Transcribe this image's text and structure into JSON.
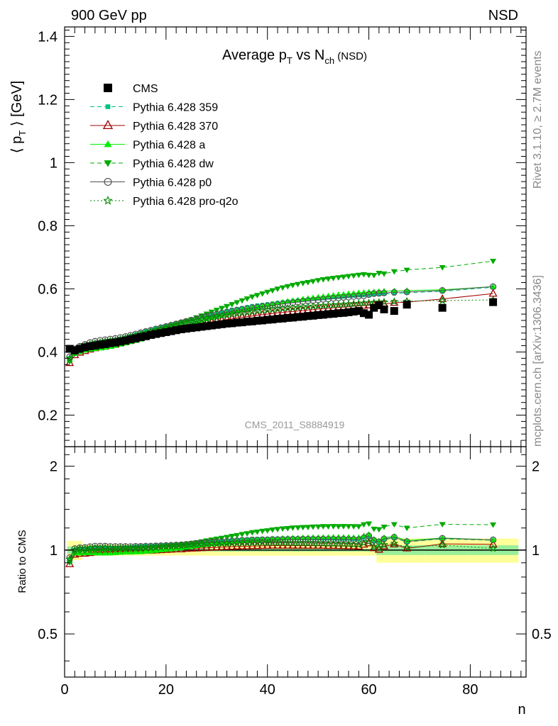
{
  "header": {
    "left": "900 GeV pp",
    "right": "NSD"
  },
  "side": {
    "top": "Rivet 3.1.10, ≥ 2.7M events",
    "bottom": "mcplots.cern.ch [arXiv:1306.3436]"
  },
  "analysis_label": "CMS_2011_S8884919",
  "colors": {
    "cms": "#000000",
    "p359": "#00c080",
    "p370": "#a00000",
    "pa": "#00ee00",
    "pdw": "#00aa00",
    "pp0": "#505050",
    "pq2o": "#008800",
    "band_yellow": "#ffff99",
    "band_green": "#99ee99"
  },
  "chart_data": [
    {
      "type": "scatter",
      "title": "Average p_T vs N_ch (NSD)",
      "title_parts": {
        "pre": "Average p",
        "sub1": "T",
        "mid": " vs N",
        "sub2": "ch",
        "post": " (NSD)"
      },
      "ylabel": "⟨ p_T ⟩ [GeV]",
      "ylabel_parts": {
        "pre": "⟨ p",
        "sub": "T",
        "post": " ⟩ [GeV]"
      },
      "xlabel": "n",
      "xlim": [
        0,
        91
      ],
      "ylim": [
        0.1,
        1.43
      ],
      "yticks": [
        "0.2",
        "0.4",
        "0.6",
        "0.8",
        "1",
        "1.2",
        "1.4"
      ],
      "xticks": [
        "0",
        "20",
        "40",
        "60",
        "80"
      ],
      "legend_placement": "top-left",
      "series": [
        {
          "key": "cms",
          "name": "CMS",
          "marker": "square",
          "line": "none",
          "x": [
            1,
            2,
            3,
            4,
            5,
            6,
            7,
            8,
            9,
            10,
            11,
            12,
            13,
            14,
            15,
            16,
            17,
            18,
            19,
            20,
            21,
            22,
            23,
            24,
            25,
            26,
            27,
            28,
            29,
            30,
            31,
            32,
            33,
            34,
            35,
            36,
            37,
            38,
            39,
            40,
            41,
            42,
            43,
            44,
            45,
            46,
            47,
            48,
            49,
            50,
            51,
            52,
            53,
            54,
            55,
            56,
            57,
            58,
            59,
            60,
            61,
            62,
            63,
            65,
            67.5,
            74.5,
            84.5
          ],
          "y": [
            0.41,
            0.405,
            0.41,
            0.415,
            0.418,
            0.42,
            0.423,
            0.425,
            0.428,
            0.43,
            0.433,
            0.436,
            0.44,
            0.443,
            0.447,
            0.45,
            0.454,
            0.457,
            0.46,
            0.463,
            0.466,
            0.469,
            0.472,
            0.474,
            0.476,
            0.478,
            0.48,
            0.482,
            0.484,
            0.486,
            0.488,
            0.49,
            0.491,
            0.493,
            0.494,
            0.496,
            0.497,
            0.499,
            0.5,
            0.502,
            0.503,
            0.505,
            0.506,
            0.508,
            0.509,
            0.511,
            0.512,
            0.514,
            0.515,
            0.517,
            0.518,
            0.52,
            0.521,
            0.523,
            0.524,
            0.526,
            0.528,
            0.53,
            0.523,
            0.518,
            0.54,
            0.548,
            0.535,
            0.53,
            0.55,
            0.54,
            0.558
          ]
        },
        {
          "key": "p359",
          "name": "Pythia 6.428 359",
          "marker": "square-small",
          "line": "dashed",
          "x": [
            1,
            2,
            3,
            4,
            5,
            6,
            7,
            8,
            9,
            10,
            11,
            12,
            13,
            14,
            15,
            16,
            17,
            18,
            19,
            20,
            21,
            22,
            23,
            24,
            25,
            26,
            27,
            28,
            29,
            30,
            31,
            32,
            33,
            34,
            35,
            36,
            37,
            38,
            39,
            40,
            41,
            42,
            43,
            44,
            45,
            46,
            47,
            48,
            49,
            50,
            51,
            52,
            53,
            54,
            55,
            56,
            57,
            58,
            59,
            60,
            61,
            62,
            63,
            65,
            67.5,
            74.5,
            84.5
          ],
          "y": [
            0.38,
            0.405,
            0.415,
            0.42,
            0.425,
            0.43,
            0.432,
            0.434,
            0.436,
            0.438,
            0.442,
            0.446,
            0.451,
            0.456,
            0.461,
            0.466,
            0.47,
            0.475,
            0.479,
            0.483,
            0.487,
            0.491,
            0.495,
            0.499,
            0.503,
            0.507,
            0.511,
            0.515,
            0.519,
            0.523,
            0.527,
            0.531,
            0.534,
            0.537,
            0.54,
            0.543,
            0.546,
            0.548,
            0.55,
            0.552,
            0.554,
            0.556,
            0.558,
            0.56,
            0.562,
            0.563,
            0.565,
            0.566,
            0.568,
            0.569,
            0.57,
            0.572,
            0.573,
            0.574,
            0.575,
            0.577,
            0.578,
            0.579,
            0.58,
            0.581,
            0.582,
            0.583,
            0.584,
            0.585,
            0.588,
            0.592,
            0.605
          ]
        },
        {
          "key": "p370",
          "name": "Pythia 6.428 370",
          "marker": "triangle-open",
          "line": "solid",
          "x": [
            1,
            2,
            3,
            4,
            5,
            6,
            7,
            8,
            9,
            10,
            11,
            12,
            13,
            14,
            15,
            16,
            17,
            18,
            19,
            20,
            21,
            22,
            23,
            24,
            25,
            26,
            27,
            28,
            29,
            30,
            31,
            32,
            33,
            34,
            35,
            36,
            37,
            38,
            39,
            40,
            41,
            42,
            43,
            44,
            45,
            46,
            47,
            48,
            49,
            50,
            51,
            52,
            53,
            54,
            55,
            56,
            57,
            58,
            59,
            60,
            61,
            62,
            63,
            65,
            67.5,
            74.5,
            84.5
          ],
          "y": [
            0.365,
            0.39,
            0.398,
            0.403,
            0.408,
            0.412,
            0.415,
            0.418,
            0.421,
            0.424,
            0.428,
            0.432,
            0.436,
            0.44,
            0.444,
            0.448,
            0.452,
            0.456,
            0.46,
            0.464,
            0.468,
            0.472,
            0.475,
            0.479,
            0.482,
            0.485,
            0.488,
            0.491,
            0.494,
            0.497,
            0.5,
            0.503,
            0.505,
            0.508,
            0.51,
            0.512,
            0.514,
            0.516,
            0.518,
            0.52,
            0.522,
            0.524,
            0.525,
            0.527,
            0.528,
            0.53,
            0.531,
            0.533,
            0.534,
            0.536,
            0.537,
            0.538,
            0.54,
            0.541,
            0.542,
            0.543,
            0.545,
            0.546,
            0.547,
            0.548,
            0.549,
            0.55,
            0.552,
            0.556,
            0.558,
            0.568,
            0.585
          ]
        },
        {
          "key": "pa",
          "name": "Pythia 6.428 a",
          "marker": "triangle",
          "line": "solid",
          "x": [
            1,
            2,
            3,
            4,
            5,
            6,
            7,
            8,
            9,
            10,
            11,
            12,
            13,
            14,
            15,
            16,
            17,
            18,
            19,
            20,
            21,
            22,
            23,
            24,
            25,
            26,
            27,
            28,
            29,
            30,
            31,
            32,
            33,
            34,
            35,
            36,
            37,
            38,
            39,
            40,
            41,
            42,
            43,
            44,
            45,
            46,
            47,
            48,
            49,
            50,
            51,
            52,
            53,
            54,
            55,
            56,
            57,
            58,
            59,
            60,
            61,
            62,
            63,
            65,
            67.5,
            74.5,
            84.5
          ],
          "y": [
            0.375,
            0.395,
            0.4,
            0.405,
            0.408,
            0.41,
            0.412,
            0.414,
            0.417,
            0.42,
            0.424,
            0.428,
            0.432,
            0.436,
            0.44,
            0.445,
            0.45,
            0.455,
            0.46,
            0.465,
            0.47,
            0.475,
            0.48,
            0.485,
            0.49,
            0.495,
            0.5,
            0.505,
            0.51,
            0.514,
            0.518,
            0.522,
            0.526,
            0.53,
            0.534,
            0.537,
            0.54,
            0.543,
            0.546,
            0.549,
            0.552,
            0.555,
            0.558,
            0.561,
            0.563,
            0.565,
            0.568,
            0.57,
            0.572,
            0.574,
            0.576,
            0.578,
            0.58,
            0.582,
            0.583,
            0.585,
            0.586,
            0.588,
            0.589,
            0.59,
            0.591,
            0.592,
            0.593,
            0.594,
            0.595,
            0.597,
            0.607
          ]
        },
        {
          "key": "pdw",
          "name": "Pythia 6.428 dw",
          "marker": "triangle-down",
          "line": "dashed",
          "x": [
            1,
            2,
            3,
            4,
            5,
            6,
            7,
            8,
            9,
            10,
            11,
            12,
            13,
            14,
            15,
            16,
            17,
            18,
            19,
            20,
            21,
            22,
            23,
            24,
            25,
            26,
            27,
            28,
            29,
            30,
            31,
            32,
            33,
            34,
            35,
            36,
            37,
            38,
            39,
            40,
            41,
            42,
            43,
            44,
            45,
            46,
            47,
            48,
            49,
            50,
            51,
            52,
            53,
            54,
            55,
            56,
            57,
            58,
            59,
            60,
            61,
            62,
            63,
            65,
            67.5,
            74.5,
            84.5
          ],
          "y": [
            0.37,
            0.395,
            0.405,
            0.41,
            0.415,
            0.418,
            0.421,
            0.424,
            0.427,
            0.43,
            0.434,
            0.438,
            0.443,
            0.448,
            0.453,
            0.458,
            0.463,
            0.468,
            0.473,
            0.478,
            0.483,
            0.488,
            0.493,
            0.498,
            0.503,
            0.509,
            0.515,
            0.521,
            0.527,
            0.533,
            0.539,
            0.545,
            0.551,
            0.557,
            0.563,
            0.569,
            0.575,
            0.58,
            0.585,
            0.59,
            0.595,
            0.6,
            0.604,
            0.608,
            0.612,
            0.615,
            0.618,
            0.621,
            0.624,
            0.627,
            0.63,
            0.632,
            0.634,
            0.636,
            0.638,
            0.64,
            0.642,
            0.644,
            0.646,
            0.644,
            0.643,
            0.65,
            0.648,
            0.655,
            0.66,
            0.668,
            0.688
          ]
        },
        {
          "key": "pp0",
          "name": "Pythia 6.428 p0",
          "marker": "circle-open",
          "line": "solid",
          "x": [
            1,
            2,
            3,
            4,
            5,
            6,
            7,
            8,
            9,
            10,
            11,
            12,
            13,
            14,
            15,
            16,
            17,
            18,
            19,
            20,
            21,
            22,
            23,
            24,
            25,
            26,
            27,
            28,
            29,
            30,
            31,
            32,
            33,
            34,
            35,
            36,
            37,
            38,
            39,
            40,
            41,
            42,
            43,
            44,
            45,
            46,
            47,
            48,
            49,
            50,
            51,
            52,
            53,
            54,
            55,
            56,
            57,
            58,
            59,
            60,
            61,
            62,
            63,
            65,
            67.5,
            74.5,
            84.5
          ],
          "y": [
            0.385,
            0.41,
            0.418,
            0.424,
            0.43,
            0.434,
            0.437,
            0.439,
            0.441,
            0.443,
            0.446,
            0.449,
            0.453,
            0.457,
            0.461,
            0.465,
            0.469,
            0.473,
            0.477,
            0.481,
            0.485,
            0.489,
            0.493,
            0.497,
            0.501,
            0.505,
            0.509,
            0.513,
            0.517,
            0.52,
            0.523,
            0.526,
            0.529,
            0.532,
            0.535,
            0.537,
            0.54,
            0.542,
            0.544,
            0.546,
            0.548,
            0.55,
            0.552,
            0.554,
            0.556,
            0.558,
            0.56,
            0.562,
            0.563,
            0.565,
            0.567,
            0.568,
            0.57,
            0.571,
            0.573,
            0.574,
            0.576,
            0.577,
            0.578,
            0.582,
            0.585,
            0.586,
            0.587,
            0.589,
            0.59,
            0.595,
            0.607
          ]
        },
        {
          "key": "pq2o",
          "name": "Pythia 6.428 pro-q2o",
          "marker": "star",
          "line": "dotted",
          "x": [
            1,
            2,
            3,
            4,
            5,
            6,
            7,
            8,
            9,
            10,
            11,
            12,
            13,
            14,
            15,
            16,
            17,
            18,
            19,
            20,
            21,
            22,
            23,
            24,
            25,
            26,
            27,
            28,
            29,
            30,
            31,
            32,
            33,
            34,
            35,
            36,
            37,
            38,
            39,
            40,
            41,
            42,
            43,
            44,
            45,
            46,
            47,
            48,
            49,
            50,
            51,
            52,
            53,
            54,
            55,
            56,
            57,
            58,
            59,
            60,
            61,
            62,
            63,
            65,
            67.5,
            74.5,
            84.5
          ],
          "y": [
            0.38,
            0.405,
            0.415,
            0.42,
            0.425,
            0.428,
            0.431,
            0.434,
            0.436,
            0.438,
            0.441,
            0.444,
            0.448,
            0.452,
            0.456,
            0.46,
            0.464,
            0.468,
            0.472,
            0.476,
            0.48,
            0.484,
            0.488,
            0.492,
            0.496,
            0.5,
            0.503,
            0.506,
            0.509,
            0.512,
            0.515,
            0.517,
            0.52,
            0.522,
            0.524,
            0.526,
            0.528,
            0.53,
            0.532,
            0.533,
            0.535,
            0.536,
            0.538,
            0.539,
            0.54,
            0.541,
            0.543,
            0.544,
            0.545,
            0.546,
            0.547,
            0.548,
            0.549,
            0.55,
            0.551,
            0.552,
            0.553,
            0.554,
            0.555,
            0.556,
            0.557,
            0.558,
            0.559,
            0.56,
            0.561,
            0.563,
            0.565
          ]
        }
      ]
    },
    {
      "type": "scatter",
      "ylabel": "Ratio to CMS",
      "xlabel": "n",
      "xlim": [
        0,
        91
      ],
      "ylim": [
        0.35,
        2.35
      ],
      "log_y": true,
      "yticks": [
        "0.5",
        "1",
        "2"
      ],
      "xticks": [
        "0",
        "20",
        "40",
        "60",
        "80"
      ],
      "reference_line": 1,
      "note": "ratio of each Pythia series to CMS, same x points"
    }
  ]
}
